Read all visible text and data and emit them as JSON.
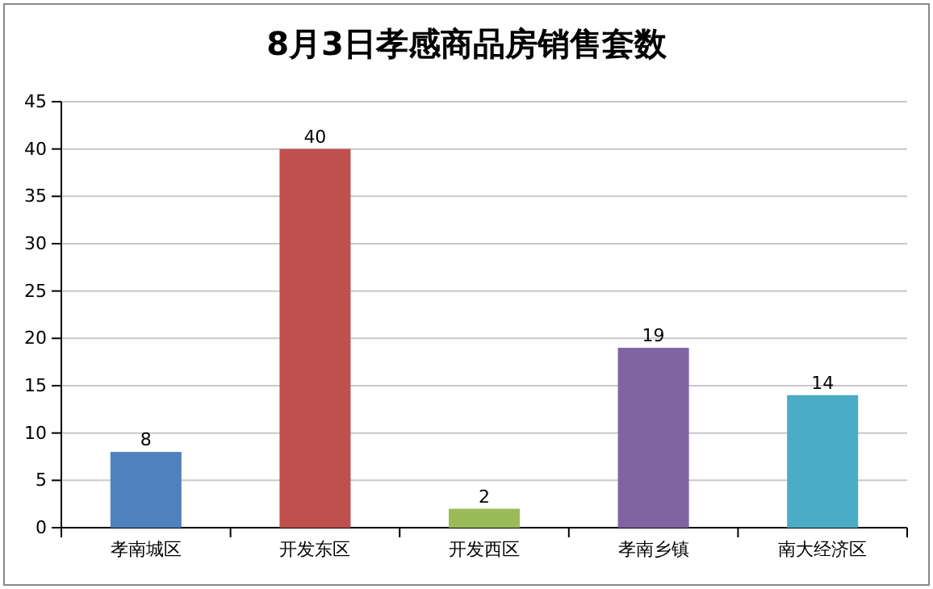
{
  "chart_data": {
    "type": "bar",
    "title": "8月3日孝感商品房销售套数",
    "categories": [
      "孝南城区",
      "开发东区",
      "开发西区",
      "孝南乡镇",
      "南大经济区"
    ],
    "values": [
      8,
      40,
      2,
      19,
      14
    ],
    "colors": [
      "#4f81bd",
      "#c0504d",
      "#9bbb59",
      "#8064a2",
      "#4bacc6"
    ],
    "ylim": [
      0,
      45
    ],
    "yticks": [
      0,
      5,
      10,
      15,
      20,
      25,
      30,
      35,
      40,
      45
    ],
    "grid": "y",
    "data_labels": true
  }
}
